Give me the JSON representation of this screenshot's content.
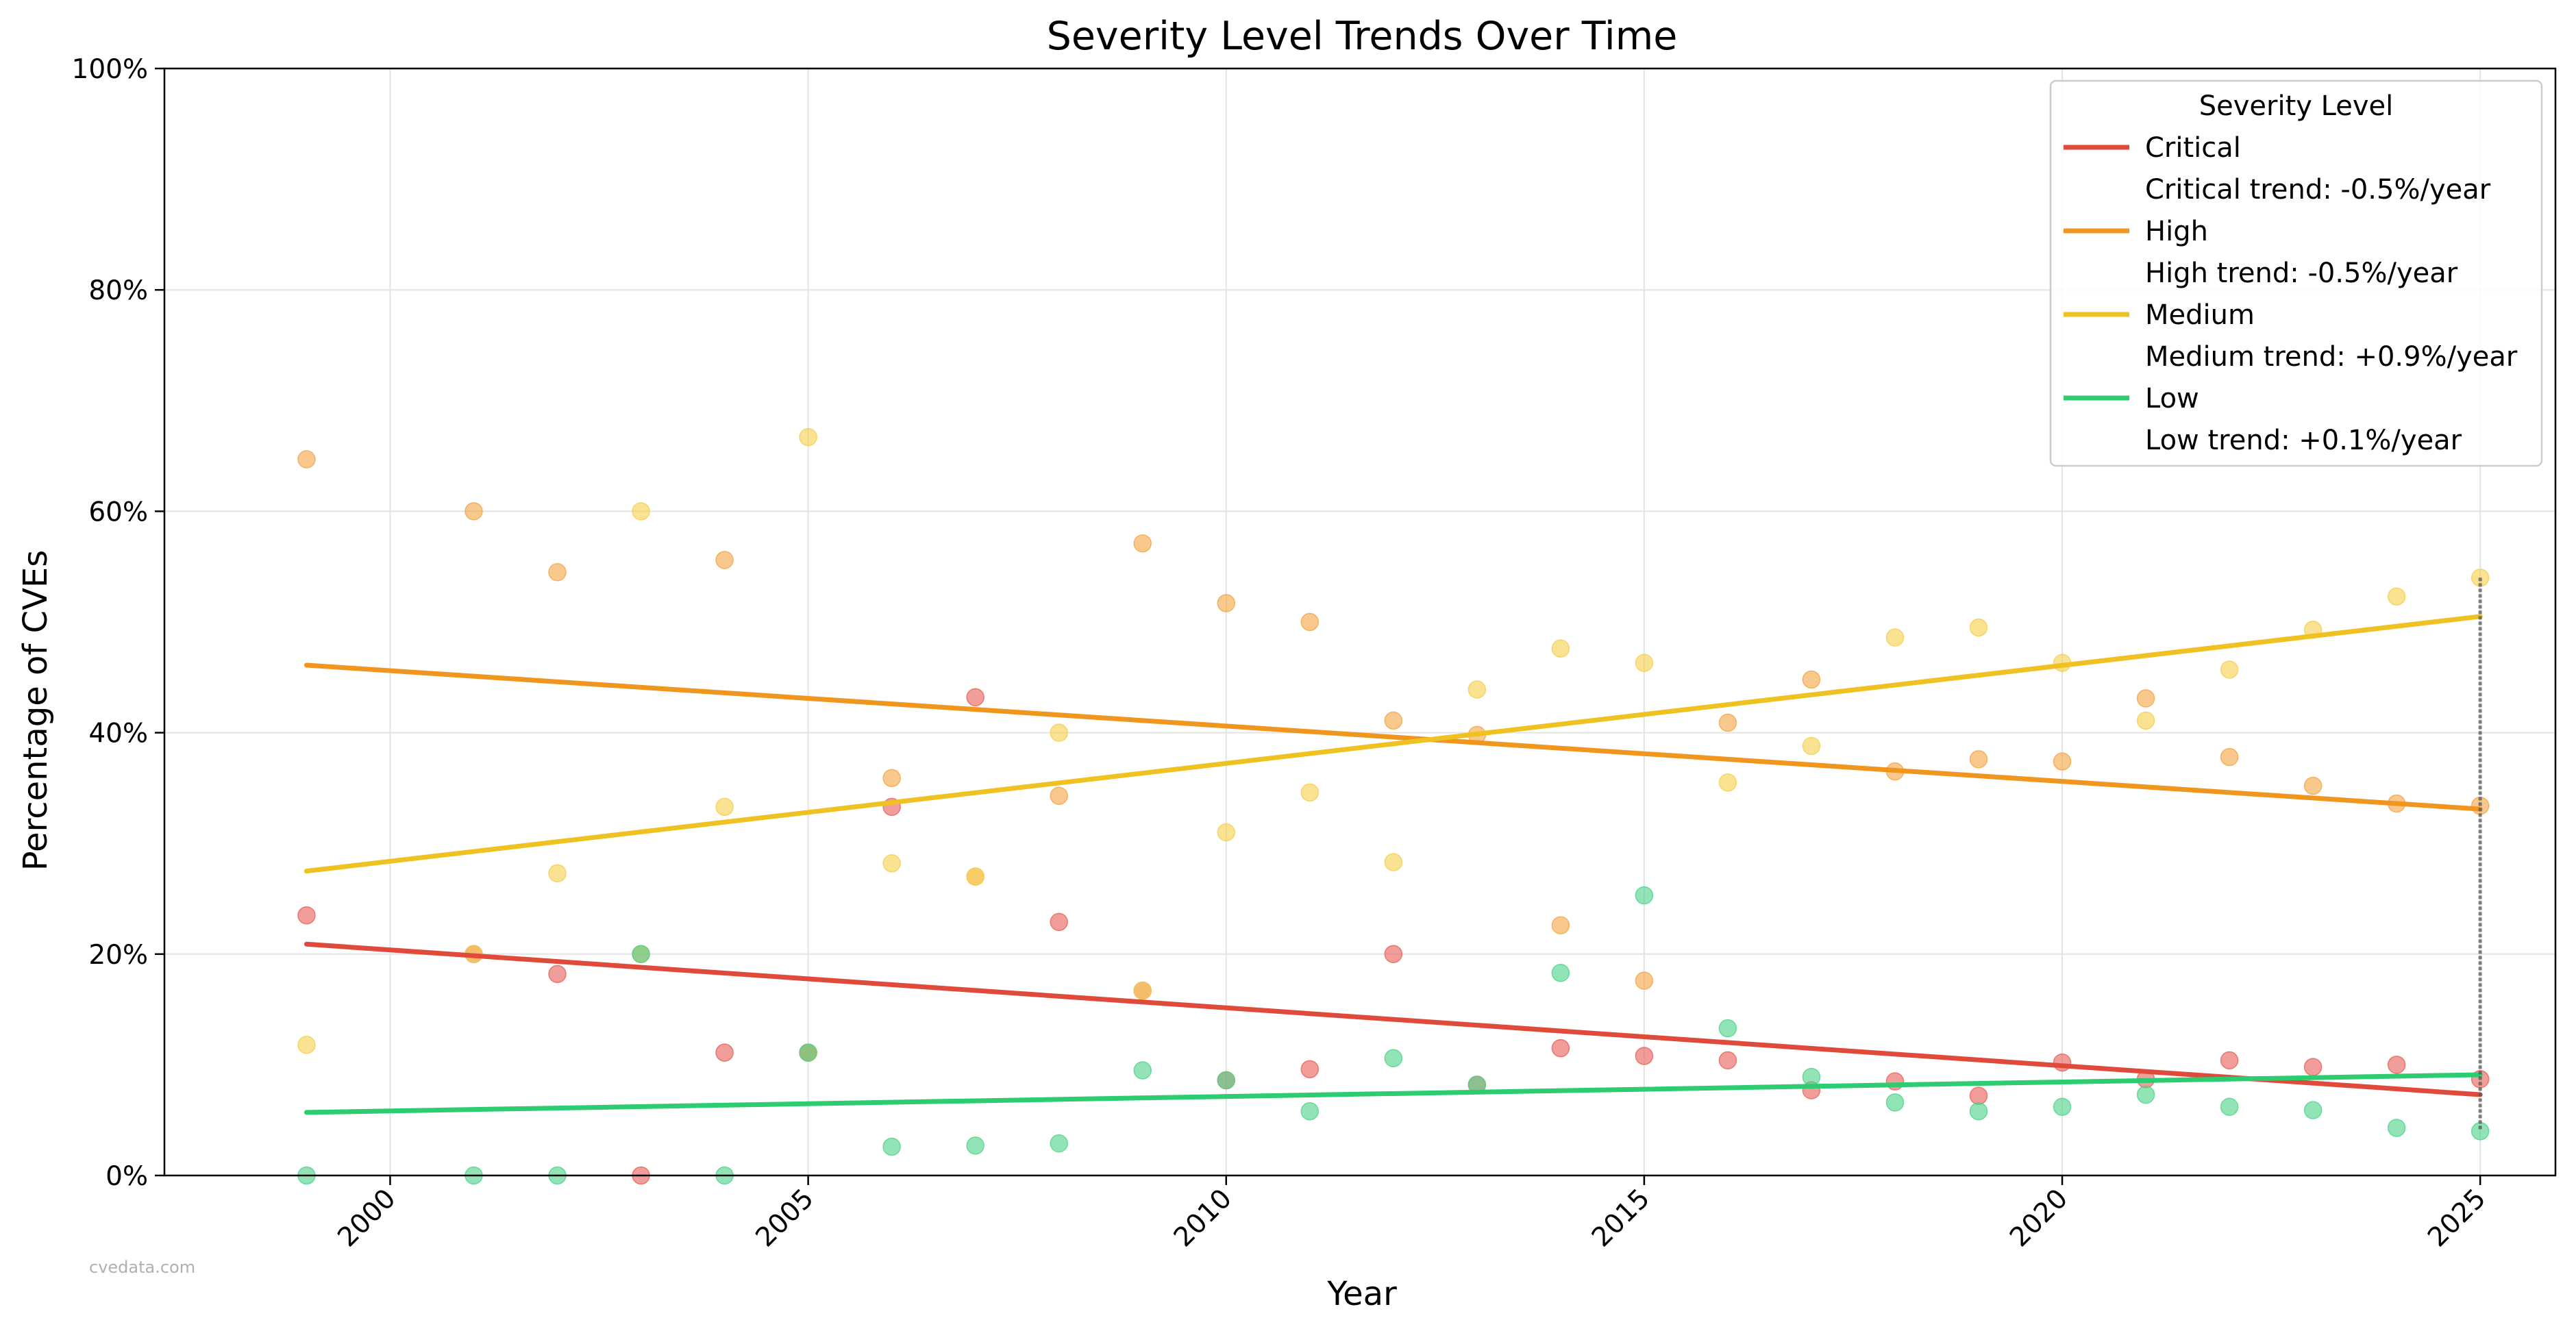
{
  "chart_data": {
    "type": "scatter",
    "title": "Severity Level Trends Over Time",
    "xlabel": "Year",
    "ylabel": "Percentage of CVEs",
    "xlim": [
      1997.3,
      2025.9
    ],
    "ylim": [
      0,
      100
    ],
    "x_ticks": [
      2000,
      2005,
      2010,
      2015,
      2020,
      2025
    ],
    "y_ticks": [
      0,
      20,
      40,
      60,
      80,
      100
    ],
    "y_tick_suffix": "%",
    "grid": true,
    "legend": {
      "title": "Severity Level",
      "placement": "top-right",
      "entries": [
        {
          "label": "Critical",
          "color": "#e04a3b",
          "marker": "line"
        },
        {
          "label": "Critical trend: -0.5%/year",
          "marker": "none"
        },
        {
          "label": "High",
          "color": "#f0961e",
          "marker": "line"
        },
        {
          "label": "High trend: -0.5%/year",
          "marker": "none"
        },
        {
          "label": "Medium",
          "color": "#efc121",
          "marker": "line"
        },
        {
          "label": "Medium trend: +0.9%/year",
          "marker": "none"
        },
        {
          "label": "Low",
          "color": "#2ecc71",
          "marker": "line"
        },
        {
          "label": "Low trend: +0.1%/year",
          "marker": "none"
        }
      ]
    },
    "series": [
      {
        "name": "Critical",
        "color": "#e04a3b",
        "point_color": "#e8615a",
        "points": [
          [
            1999,
            23.5
          ],
          [
            2001,
            20
          ],
          [
            2002,
            18.2
          ],
          [
            2003,
            0
          ],
          [
            2004,
            11.1
          ],
          [
            2005,
            11.1
          ],
          [
            2006,
            33.3
          ],
          [
            2007,
            43.2
          ],
          [
            2008,
            22.9
          ],
          [
            2009,
            16.7
          ],
          [
            2010,
            8.6
          ],
          [
            2011,
            9.6
          ],
          [
            2012,
            20
          ],
          [
            2013,
            8.2
          ],
          [
            2014,
            11.5
          ],
          [
            2015,
            10.8
          ],
          [
            2016,
            10.4
          ],
          [
            2017,
            7.7
          ],
          [
            2018,
            8.5
          ],
          [
            2019,
            7.2
          ],
          [
            2020,
            10.2
          ],
          [
            2021,
            8.7
          ],
          [
            2022,
            10.4
          ],
          [
            2023,
            9.8
          ],
          [
            2024,
            10
          ],
          [
            2025,
            8.7
          ]
        ],
        "trend": [
          [
            1999,
            20.9
          ],
          [
            2025,
            7.3
          ]
        ]
      },
      {
        "name": "High",
        "color": "#f0961e",
        "point_color": "#f3a647",
        "points": [
          [
            1999,
            64.7
          ],
          [
            2001,
            60
          ],
          [
            2002,
            54.5
          ],
          [
            2003,
            20
          ],
          [
            2004,
            55.6
          ],
          [
            2005,
            11.1
          ],
          [
            2006,
            35.9
          ],
          [
            2007,
            27
          ],
          [
            2008,
            34.3
          ],
          [
            2009,
            57.1
          ],
          [
            2010,
            51.7
          ],
          [
            2011,
            50
          ],
          [
            2012,
            41.1
          ],
          [
            2013,
            39.8
          ],
          [
            2014,
            22.6
          ],
          [
            2015,
            17.6
          ],
          [
            2016,
            40.9
          ],
          [
            2017,
            44.8
          ],
          [
            2018,
            36.5
          ],
          [
            2019,
            37.6
          ],
          [
            2020,
            37.4
          ],
          [
            2021,
            43.1
          ],
          [
            2022,
            37.8
          ],
          [
            2023,
            35.2
          ],
          [
            2024,
            33.6
          ],
          [
            2025,
            33.4
          ]
        ],
        "trend": [
          [
            1999,
            46.1
          ],
          [
            2025,
            33.1
          ]
        ]
      },
      {
        "name": "Medium",
        "color": "#efc121",
        "point_color": "#f5d04f",
        "points": [
          [
            1999,
            11.8
          ],
          [
            2001,
            20
          ],
          [
            2002,
            27.3
          ],
          [
            2003,
            60
          ],
          [
            2004,
            33.3
          ],
          [
            2005,
            66.7
          ],
          [
            2006,
            28.2
          ],
          [
            2007,
            27
          ],
          [
            2008,
            40
          ],
          [
            2009,
            16.7
          ],
          [
            2010,
            31
          ],
          [
            2011,
            34.6
          ],
          [
            2012,
            28.3
          ],
          [
            2013,
            43.9
          ],
          [
            2014,
            47.6
          ],
          [
            2015,
            46.3
          ],
          [
            2016,
            35.5
          ],
          [
            2017,
            38.8
          ],
          [
            2018,
            48.6
          ],
          [
            2019,
            49.5
          ],
          [
            2020,
            46.3
          ],
          [
            2021,
            41.1
          ],
          [
            2022,
            45.7
          ],
          [
            2023,
            49.3
          ],
          [
            2024,
            52.3
          ],
          [
            2025,
            54
          ]
        ],
        "trend": [
          [
            1999,
            27.5
          ],
          [
            2025,
            50.5
          ]
        ]
      },
      {
        "name": "Low",
        "color": "#2ecc71",
        "point_color": "#4fd48a",
        "points": [
          [
            1999,
            0
          ],
          [
            2001,
            0
          ],
          [
            2002,
            0
          ],
          [
            2003,
            20
          ],
          [
            2004,
            0
          ],
          [
            2005,
            11.1
          ],
          [
            2006,
            2.6
          ],
          [
            2007,
            2.7
          ],
          [
            2008,
            2.9
          ],
          [
            2009,
            9.5
          ],
          [
            2010,
            8.6
          ],
          [
            2011,
            5.8
          ],
          [
            2012,
            10.6
          ],
          [
            2013,
            8.2
          ],
          [
            2014,
            18.3
          ],
          [
            2015,
            25.3
          ],
          [
            2016,
            13.3
          ],
          [
            2017,
            8.9
          ],
          [
            2018,
            6.6
          ],
          [
            2019,
            5.8
          ],
          [
            2020,
            6.2
          ],
          [
            2021,
            7.3
          ],
          [
            2022,
            6.2
          ],
          [
            2023,
            5.9
          ],
          [
            2024,
            4.3
          ],
          [
            2025,
            4
          ]
        ],
        "trend": [
          [
            1999,
            5.7
          ],
          [
            2025,
            9.1
          ]
        ]
      }
    ],
    "marker_line": {
      "x": 2025,
      "y_range": [
        4,
        54
      ],
      "color": "#555555"
    }
  },
  "watermark": "cvedata.com"
}
